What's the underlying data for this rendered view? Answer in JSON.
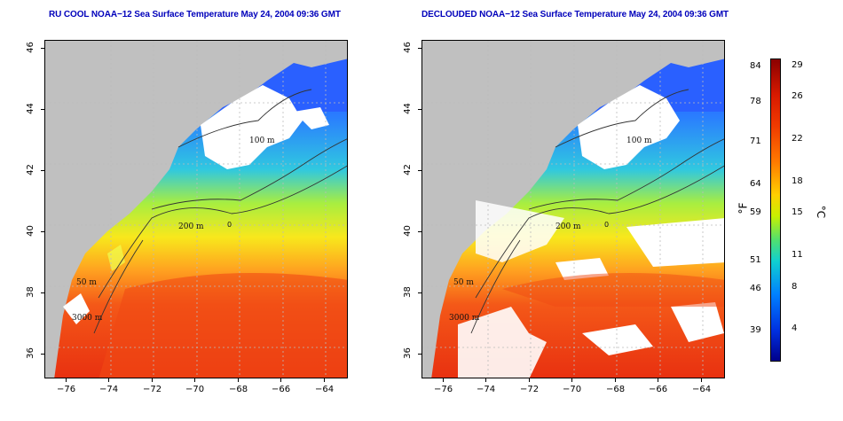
{
  "titles": {
    "left": "RU COOL NOAA−12 Sea Surface Temperature May 24, 2004 09:36 GMT",
    "right": "DECLOUDED NOAA−12 Sea Surface Temperature May 24, 2004 09:36 GMT"
  },
  "axes": {
    "x_ticks": [
      "−76",
      "−74",
      "−72",
      "−70",
      "−68",
      "−66",
      "−64"
    ],
    "y_ticks": [
      "46",
      "44",
      "42",
      "40",
      "38",
      "36"
    ]
  },
  "contours": {
    "label_100": "100 m",
    "label_200": "200 m",
    "label_50": "50 m",
    "label_3000": "3000 m",
    "label_zero": "0"
  },
  "colorbar": {
    "fahrenheit_unit": "°F",
    "celsius_unit": "°C",
    "fahrenheit_ticks": [
      "84",
      "78",
      "71",
      "64",
      "59",
      "51",
      "46",
      "39"
    ],
    "celsius_ticks": [
      "29",
      "26",
      "22",
      "18",
      "15",
      "11",
      "8",
      "4"
    ]
  },
  "colors": {
    "land": "#c0c0c0",
    "cloud": "#ffffff",
    "title": "#0000bb",
    "warm": "#e84a10",
    "mid": "#f0e020",
    "cool": "#2080ff"
  }
}
